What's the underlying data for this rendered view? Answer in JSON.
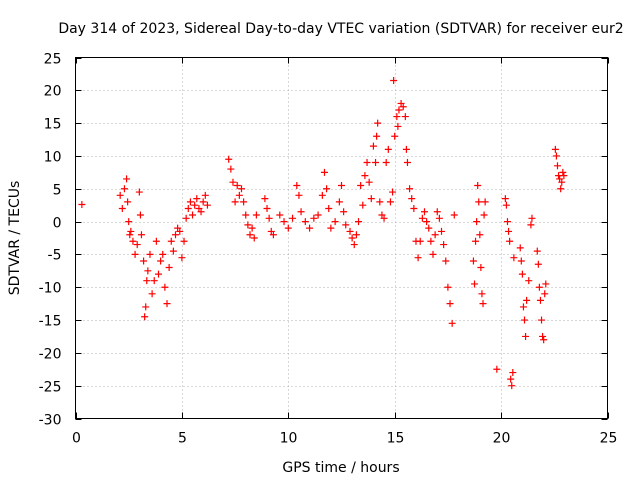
{
  "chart_data": {
    "type": "scatter",
    "title": "Day 314 of 2023, Sidereal Day-to-day VTEC variation (SDTVAR) for receiver eur2",
    "xlabel": "GPS time / hours",
    "ylabel": "SDTVAR / TECUs",
    "xlim": [
      0,
      25
    ],
    "ylim": [
      -30,
      25
    ],
    "xticks": [
      0,
      5,
      10,
      15,
      20,
      25
    ],
    "yticks": [
      -30,
      -25,
      -20,
      -15,
      -10,
      -5,
      0,
      5,
      10,
      15,
      20,
      25
    ],
    "xtick_labels": [
      "0",
      "5",
      "10",
      "15",
      "20",
      "25"
    ],
    "ytick_labels": [
      "-30",
      "-25",
      "-20",
      "-15",
      "-10",
      "-5",
      "0",
      "5",
      "10",
      "15",
      "20",
      "25"
    ],
    "grid": true,
    "marker": "+",
    "color": "#ff0000",
    "series": [
      {
        "name": "SDTVAR",
        "points": [
          [
            0.3,
            2.6
          ],
          [
            2.1,
            4.0
          ],
          [
            2.2,
            2.0
          ],
          [
            2.3,
            5.0
          ],
          [
            2.4,
            6.5
          ],
          [
            2.45,
            3.0
          ],
          [
            2.5,
            0.0
          ],
          [
            2.55,
            -2.0
          ],
          [
            2.6,
            -1.5
          ],
          [
            2.7,
            -3.0
          ],
          [
            2.8,
            -5.0
          ],
          [
            2.9,
            -3.5
          ],
          [
            3.0,
            4.5
          ],
          [
            3.05,
            1.0
          ],
          [
            3.1,
            -2.0
          ],
          [
            3.2,
            -6.0
          ],
          [
            3.25,
            -14.5
          ],
          [
            3.3,
            -13.0
          ],
          [
            3.35,
            -9.0
          ],
          [
            3.4,
            -7.5
          ],
          [
            3.5,
            -5.0
          ],
          [
            3.6,
            -11.0
          ],
          [
            3.7,
            -9.0
          ],
          [
            3.8,
            -3.0
          ],
          [
            3.9,
            -8.0
          ],
          [
            4.0,
            -6.0
          ],
          [
            4.1,
            -5.0
          ],
          [
            4.2,
            -10.0
          ],
          [
            4.3,
            -12.5
          ],
          [
            4.4,
            -7.0
          ],
          [
            4.5,
            -3.0
          ],
          [
            4.6,
            -4.5
          ],
          [
            4.7,
            -2.0
          ],
          [
            4.8,
            -1.0
          ],
          [
            4.9,
            -1.5
          ],
          [
            5.0,
            -5.5
          ],
          [
            5.1,
            -3.0
          ],
          [
            5.2,
            0.5
          ],
          [
            5.3,
            2.0
          ],
          [
            5.4,
            3.0
          ],
          [
            5.5,
            1.0
          ],
          [
            5.6,
            2.5
          ],
          [
            5.7,
            3.5
          ],
          [
            5.8,
            2.0
          ],
          [
            5.9,
            1.5
          ],
          [
            6.0,
            3.0
          ],
          [
            6.1,
            4.0
          ],
          [
            6.2,
            2.5
          ],
          [
            7.2,
            9.5
          ],
          [
            7.3,
            8.0
          ],
          [
            7.4,
            6.0
          ],
          [
            7.5,
            3.0
          ],
          [
            7.6,
            5.5
          ],
          [
            7.7,
            4.0
          ],
          [
            7.8,
            5.0
          ],
          [
            7.9,
            3.0
          ],
          [
            8.0,
            1.0
          ],
          [
            8.1,
            -0.5
          ],
          [
            8.2,
            -2.0
          ],
          [
            8.3,
            -1.0
          ],
          [
            8.4,
            -2.5
          ],
          [
            8.5,
            1.0
          ],
          [
            8.9,
            3.5
          ],
          [
            9.0,
            2.0
          ],
          [
            9.1,
            0.5
          ],
          [
            9.2,
            -1.5
          ],
          [
            9.3,
            -2.0
          ],
          [
            9.6,
            1.0
          ],
          [
            9.8,
            0.0
          ],
          [
            10.0,
            -1.0
          ],
          [
            10.2,
            0.5
          ],
          [
            10.4,
            5.5
          ],
          [
            10.5,
            4.0
          ],
          [
            10.6,
            1.5
          ],
          [
            10.8,
            0.0
          ],
          [
            11.0,
            -1.0
          ],
          [
            11.2,
            0.5
          ],
          [
            11.4,
            1.0
          ],
          [
            11.6,
            4.0
          ],
          [
            11.7,
            7.5
          ],
          [
            11.8,
            5.0
          ],
          [
            11.9,
            2.0
          ],
          [
            12.0,
            -1.0
          ],
          [
            12.2,
            0.0
          ],
          [
            12.4,
            3.0
          ],
          [
            12.5,
            5.5
          ],
          [
            12.6,
            1.5
          ],
          [
            12.7,
            -0.5
          ],
          [
            12.9,
            -1.5
          ],
          [
            13.0,
            -2.5
          ],
          [
            13.1,
            -3.5
          ],
          [
            13.2,
            -2.0
          ],
          [
            13.3,
            0.0
          ],
          [
            13.4,
            5.5
          ],
          [
            13.5,
            2.5
          ],
          [
            13.6,
            7.0
          ],
          [
            13.7,
            9.0
          ],
          [
            13.8,
            6.0
          ],
          [
            13.9,
            3.5
          ],
          [
            14.0,
            11.5
          ],
          [
            14.1,
            9.0
          ],
          [
            14.15,
            13.0
          ],
          [
            14.2,
            15.0
          ],
          [
            14.3,
            3.0
          ],
          [
            14.4,
            1.0
          ],
          [
            14.5,
            0.5
          ],
          [
            14.6,
            9.0
          ],
          [
            14.7,
            11.0
          ],
          [
            14.8,
            3.0
          ],
          [
            14.9,
            4.5
          ],
          [
            14.95,
            21.5
          ],
          [
            15.0,
            13.0
          ],
          [
            15.1,
            16.0
          ],
          [
            15.15,
            14.5
          ],
          [
            15.2,
            17.0
          ],
          [
            15.3,
            18.0
          ],
          [
            15.4,
            17.5
          ],
          [
            15.5,
            16.0
          ],
          [
            15.55,
            11.0
          ],
          [
            15.6,
            9.0
          ],
          [
            15.7,
            5.0
          ],
          [
            15.8,
            3.5
          ],
          [
            15.9,
            2.0
          ],
          [
            16.0,
            -3.0
          ],
          [
            16.1,
            -5.5
          ],
          [
            16.2,
            -3.0
          ],
          [
            16.3,
            0.5
          ],
          [
            16.4,
            1.5
          ],
          [
            16.5,
            0.0
          ],
          [
            16.6,
            -1.0
          ],
          [
            16.7,
            -3.0
          ],
          [
            16.8,
            -5.0
          ],
          [
            16.9,
            -2.0
          ],
          [
            17.0,
            1.5
          ],
          [
            17.1,
            0.5
          ],
          [
            17.2,
            -1.5
          ],
          [
            17.3,
            -3.5
          ],
          [
            17.4,
            -6.0
          ],
          [
            17.5,
            -10.0
          ],
          [
            17.6,
            -12.5
          ],
          [
            17.7,
            -15.5
          ],
          [
            17.8,
            1.0
          ],
          [
            18.7,
            -6.0
          ],
          [
            18.75,
            -9.5
          ],
          [
            18.8,
            -3.0
          ],
          [
            18.85,
            0.0
          ],
          [
            18.9,
            5.5
          ],
          [
            18.95,
            3.0
          ],
          [
            19.0,
            -2.0
          ],
          [
            19.05,
            -7.0
          ],
          [
            19.1,
            -11.0
          ],
          [
            19.15,
            -12.5
          ],
          [
            19.2,
            1.0
          ],
          [
            19.25,
            3.0
          ],
          [
            19.8,
            -22.5
          ],
          [
            20.2,
            3.5
          ],
          [
            20.25,
            2.5
          ],
          [
            20.3,
            0.0
          ],
          [
            20.35,
            -1.5
          ],
          [
            20.4,
            -3.0
          ],
          [
            20.45,
            -24.0
          ],
          [
            20.5,
            -25.0
          ],
          [
            20.55,
            -23.0
          ],
          [
            20.6,
            -5.5
          ],
          [
            20.9,
            -4.0
          ],
          [
            20.95,
            -6.0
          ],
          [
            21.0,
            -8.0
          ],
          [
            21.05,
            -13.0
          ],
          [
            21.1,
            -15.0
          ],
          [
            21.15,
            -17.5
          ],
          [
            21.2,
            -12.0
          ],
          [
            21.3,
            -9.0
          ],
          [
            21.4,
            -0.5
          ],
          [
            21.45,
            0.5
          ],
          [
            21.7,
            -4.5
          ],
          [
            21.75,
            -6.5
          ],
          [
            21.8,
            -10.0
          ],
          [
            21.85,
            -12.0
          ],
          [
            21.9,
            -15.0
          ],
          [
            21.95,
            -17.5
          ],
          [
            22.0,
            -18.0
          ],
          [
            22.05,
            -11.0
          ],
          [
            22.1,
            -9.5
          ],
          [
            22.55,
            11.0
          ],
          [
            22.6,
            10.0
          ],
          [
            22.65,
            8.5
          ],
          [
            22.7,
            7.0
          ],
          [
            22.75,
            6.5
          ],
          [
            22.8,
            5.0
          ],
          [
            22.85,
            6.0
          ],
          [
            22.9,
            7.5
          ],
          [
            22.95,
            7.0
          ]
        ]
      }
    ]
  }
}
